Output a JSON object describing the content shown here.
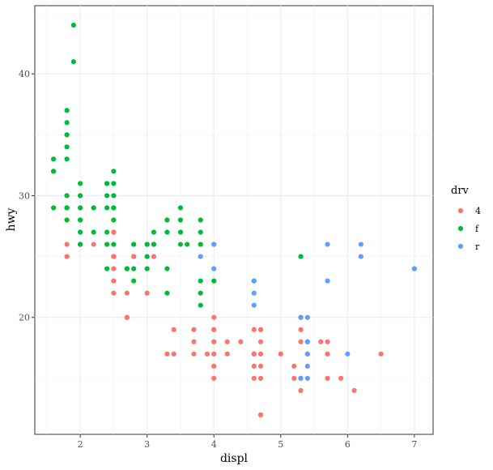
{
  "chart_data": {
    "type": "scatter",
    "xlabel": "displ",
    "ylabel": "hwy",
    "xlim": [
      1.32,
      7.28
    ],
    "ylim": [
      10.4,
      45.6
    ],
    "x_ticks": [
      2,
      3,
      4,
      5,
      6,
      7
    ],
    "y_ticks": [
      20,
      30,
      40
    ],
    "grid": true,
    "legend": {
      "title": "drv",
      "placement": "right"
    },
    "series": [
      {
        "name": "4",
        "color": "#F8766D",
        "x": [
          1.8,
          1.8,
          2.0,
          2.2,
          2.4,
          2.5,
          2.5,
          2.5,
          2.5,
          2.5,
          2.5,
          2.5,
          2.5,
          2.5,
          2.7,
          2.7,
          2.7,
          2.8,
          2.8,
          3.0,
          3.1,
          3.3,
          3.4,
          3.4,
          3.7,
          3.7,
          3.7,
          3.9,
          4.0,
          4.0,
          4.0,
          4.0,
          4.0,
          4.0,
          4.0,
          4.2,
          4.2,
          4.4,
          4.6,
          4.6,
          4.6,
          4.6,
          4.6,
          4.7,
          4.7,
          4.7,
          4.7,
          4.7,
          4.7,
          4.7,
          4.7,
          5.0,
          5.2,
          5.2,
          5.3,
          5.3,
          5.3,
          5.3,
          5.4,
          5.6,
          5.7,
          5.7,
          5.7,
          5.9,
          6.1,
          6.5
        ],
        "y": [
          26,
          25,
          26,
          26,
          26,
          27,
          26,
          25,
          25,
          24,
          23,
          22,
          27,
          25,
          22,
          20,
          20,
          25,
          25,
          22,
          25,
          17,
          19,
          17,
          19,
          18,
          17,
          17,
          20,
          19,
          18,
          17,
          16,
          15,
          19,
          17,
          18,
          18,
          19,
          17,
          16,
          15,
          17,
          19,
          18,
          17,
          16,
          15,
          19,
          12,
          12,
          17,
          16,
          15,
          14,
          18,
          19,
          15,
          17,
          18,
          17,
          18,
          15,
          15,
          14,
          17
        ]
      },
      {
        "name": "f",
        "color": "#00BA38",
        "x": [
          1.6,
          1.6,
          1.6,
          1.6,
          1.8,
          1.8,
          1.8,
          1.8,
          1.8,
          1.8,
          1.8,
          1.8,
          1.8,
          1.8,
          1.9,
          1.9,
          2.0,
          2.0,
          2.0,
          2.0,
          2.0,
          2.0,
          2.0,
          2.0,
          2.2,
          2.2,
          2.4,
          2.4,
          2.4,
          2.4,
          2.4,
          2.4,
          2.4,
          2.5,
          2.5,
          2.5,
          2.5,
          2.5,
          2.5,
          2.5,
          2.7,
          2.7,
          2.8,
          2.8,
          2.8,
          2.8,
          3.0,
          3.0,
          3.0,
          3.0,
          3.1,
          3.1,
          3.1,
          3.3,
          3.3,
          3.3,
          3.3,
          3.5,
          3.5,
          3.5,
          3.5,
          3.6,
          3.8,
          3.8,
          3.8,
          3.8,
          3.8,
          3.8,
          4.0,
          4.0,
          5.3
        ],
        "y": [
          33,
          32,
          32,
          29,
          37,
          36,
          35,
          34,
          33,
          30,
          29,
          29,
          28,
          29,
          44,
          41,
          31,
          30,
          29,
          28,
          27,
          26,
          26,
          28,
          29,
          27,
          31,
          31,
          30,
          29,
          27,
          26,
          24,
          32,
          31,
          30,
          29,
          29,
          28,
          26,
          24,
          24,
          26,
          26,
          24,
          23,
          26,
          26,
          25,
          24,
          26,
          27,
          26,
          28,
          27,
          24,
          22,
          29,
          28,
          27,
          26,
          26,
          28,
          27,
          26,
          23,
          22,
          21,
          26,
          23,
          25
        ]
      },
      {
        "name": "r",
        "color": "#619CFF",
        "x": [
          3.8,
          4.0,
          4.0,
          4.6,
          4.6,
          4.6,
          4.6,
          5.3,
          5.3,
          5.3,
          5.4,
          5.4,
          5.4,
          5.4,
          5.4,
          5.4,
          5.7,
          5.7,
          6.0,
          6.2,
          6.2,
          7.0
        ],
        "y": [
          25,
          26,
          24,
          23,
          22,
          21,
          23,
          20,
          15,
          20,
          20,
          18,
          17,
          16,
          15,
          18,
          26,
          23,
          17,
          26,
          25,
          24
        ]
      }
    ]
  }
}
